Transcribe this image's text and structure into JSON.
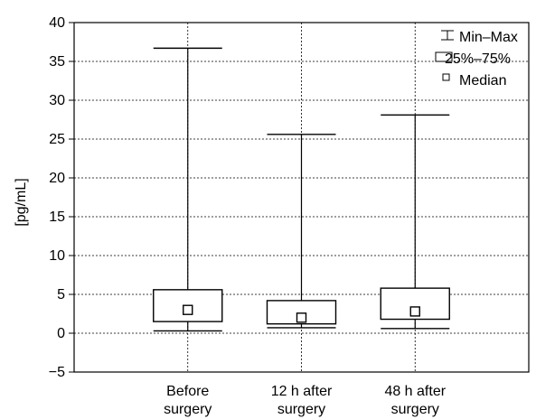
{
  "chart_data": {
    "type": "boxplot",
    "ylabel": "[pg/mL]",
    "ylim": [
      -5,
      40
    ],
    "yticks": [
      -5,
      0,
      5,
      10,
      15,
      20,
      25,
      30,
      35,
      40
    ],
    "grid": true,
    "legend_position": "top-right",
    "legend": [
      "Min–Max",
      "25%–75%",
      "Median"
    ],
    "categories": [
      [
        "Before",
        "surgery"
      ],
      [
        "12 h after",
        "surgery"
      ],
      [
        "48 h after",
        "surgery"
      ]
    ],
    "boxes": [
      {
        "min": 0.3,
        "q1": 1.5,
        "median": 3.0,
        "q3": 5.6,
        "max": 36.7
      },
      {
        "min": 0.7,
        "q1": 1.2,
        "median": 2.0,
        "q3": 4.2,
        "max": 25.6
      },
      {
        "min": 0.6,
        "q1": 1.8,
        "median": 2.8,
        "q3": 5.8,
        "max": 28.1
      }
    ]
  }
}
